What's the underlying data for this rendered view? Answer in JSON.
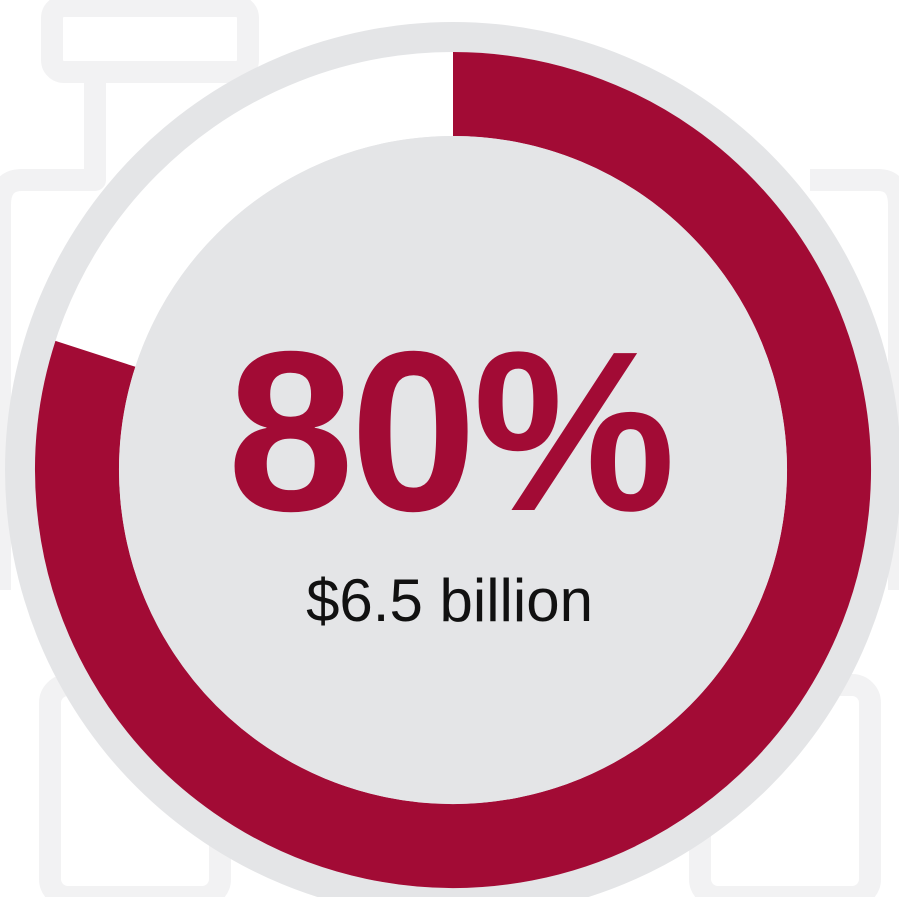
{
  "chart_data": {
    "type": "pie",
    "style": "donut",
    "categories": [
      "",
      ""
    ],
    "values": [
      80,
      20
    ],
    "title": "",
    "center_value": "80%",
    "center_label": "$6.5 billion"
  },
  "colors": {
    "accent": "#a20b35",
    "ring_background": "#e4e5e7",
    "ring_remainder": "#ffffff",
    "center_label_text": "#111111",
    "background_decoration": "#f2f2f3"
  },
  "background_icon": "faint-building-outline-icon"
}
